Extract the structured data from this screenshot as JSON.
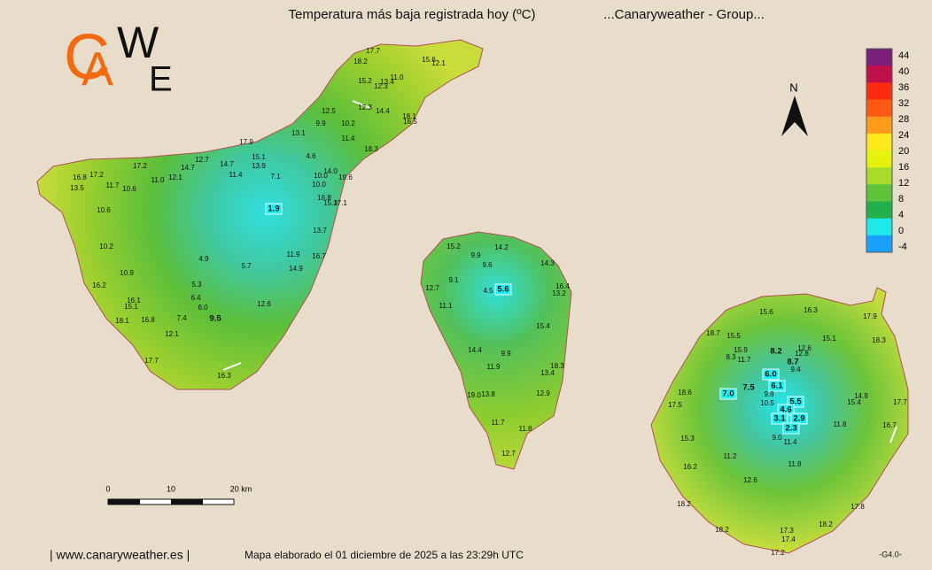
{
  "header": {
    "title": "Temperatura más baja registrada hoy (ºC)",
    "group": "...Canaryweather - Group..."
  },
  "logo": {
    "letters": [
      "C",
      "A",
      "W",
      "E"
    ]
  },
  "compass": "N",
  "legend": {
    "labels": [
      44,
      40,
      36,
      32,
      28,
      24,
      20,
      16,
      12,
      8,
      4,
      0,
      -4
    ],
    "colors": [
      "#7a1f7a",
      "#c0104a",
      "#ff2a10",
      "#ff5a14",
      "#ff9a1a",
      "#ffe81a",
      "#e4f20e",
      "#a8dc2a",
      "#5cc33a",
      "#22b04a",
      "#1ee8e8",
      "#1aa0ff",
      "#1a3cff"
    ]
  },
  "stations": {
    "tenerife": [
      "17.7",
      "18.2",
      "15.6",
      "12.1",
      "11.0",
      "15.2",
      "13.4",
      "12.3",
      "12.3",
      "14.4",
      "12.5",
      "18.1",
      "16.5",
      "9.9",
      "10.2",
      "13.1",
      "11.4",
      "17.9",
      "18.3",
      "4.6",
      "12.7",
      "14.7",
      "15.1",
      "17.2",
      "14.7",
      "13.9",
      "14.0",
      "11.4",
      "7.1",
      "10.0",
      "19.6",
      "16.8",
      "17.2",
      "12.1",
      "11.0",
      "10.0",
      "13.5",
      "11.7",
      "10.6",
      "16.8",
      "15.3",
      "17.1",
      "1.9",
      "10.6",
      "13.7",
      "10.2",
      "11.9",
      "16.7",
      "4.9",
      "5.7",
      "14.9",
      "10.9",
      "16.2",
      "5.3",
      "6.4",
      "16.1",
      "12.6",
      "15.1",
      "6.0",
      "9.5",
      "16.8",
      "7.4",
      "18.1",
      "12.1",
      "17.7",
      "16.3"
    ],
    "la_palma": [
      "15.2",
      "14.2",
      "9.9",
      "14.3",
      "9.6",
      "9.1",
      "12.7",
      "16.4",
      "4.5",
      "5.6",
      "13.2",
      "11.1",
      "15.4",
      "14.4",
      "9.9",
      "11.9",
      "18.3",
      "13.4",
      "12.9",
      "13.8",
      "19.0",
      "11.7",
      "11.8",
      "12.7"
    ],
    "gran_canaria": [
      "15.6",
      "16.3",
      "17.9",
      "18.7",
      "15.5",
      "15.1",
      "18.3",
      "15.9",
      "8.2",
      "12.6",
      "8.3",
      "11.7",
      "12.8",
      "8.7",
      "9.4",
      "6.0",
      "6.1",
      "7.0",
      "7.5",
      "18.6",
      "9.8",
      "10.5",
      "5.5",
      "14.9",
      "15.4",
      "17.7",
      "17.5",
      "4.6",
      "3.1",
      "2.9",
      "2.3",
      "11.8",
      "16.7",
      "9.0",
      "11.4",
      "15.3",
      "11.2",
      "11.8",
      "16.2",
      "12.6",
      "18.2",
      "17.8",
      "18.2",
      "18.2",
      "17.3",
      "17.4",
      "17.2"
    ]
  },
  "scale": {
    "ticks": [
      "0",
      "10",
      "20 km"
    ]
  },
  "footer": {
    "site": "| www.canaryweather.es |",
    "note": "Mapa elaborado el 01 diciembre de 2025 a las 23:29h UTC",
    "version": "-G4.0-"
  }
}
